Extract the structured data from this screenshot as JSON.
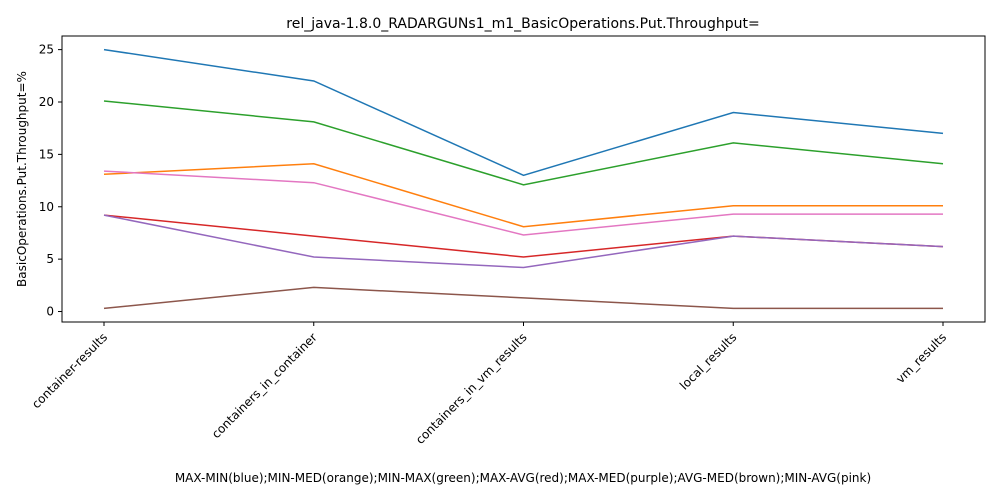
{
  "chart_data": {
    "type": "line",
    "title": "rel_java-1.8.0_RADARGUNs1_m1_BasicOperations.Put.Throughput=",
    "xlabel": "MAX-MIN(blue);MIN-MED(orange);MIN-MAX(green);MAX-AVG(red);MAX-MED(purple);AVG-MED(brown);MIN-AVG(pink)",
    "ylabel": "BasicOperations.Put.Throughput=%",
    "categories": [
      "container-results",
      "containers_in_container",
      "containers_in_vm_results",
      "local_results",
      "vm_results"
    ],
    "ylim": [
      -1,
      26.3
    ],
    "yticks": [
      0,
      5,
      10,
      15,
      20,
      25
    ],
    "grid": false,
    "series": [
      {
        "color": "#1f77b4",
        "values": [
          25,
          22,
          13,
          19,
          17
        ]
      },
      {
        "color": "#ff7f0e",
        "values": [
          13.1,
          14.1,
          8.1,
          10.1,
          10.1
        ]
      },
      {
        "color": "#2ca02c",
        "values": [
          20.1,
          18.1,
          12.1,
          16.1,
          14.1
        ]
      },
      {
        "color": "#d62728",
        "values": [
          9.2,
          7.2,
          5.2,
          7.2,
          6.2
        ]
      },
      {
        "color": "#9467bd",
        "values": [
          9.2,
          5.2,
          4.2,
          7.2,
          6.2
        ]
      },
      {
        "color": "#8c564b",
        "values": [
          0.3,
          2.3,
          1.3,
          0.3,
          0.3
        ]
      },
      {
        "color": "#e377c2",
        "values": [
          13.4,
          12.3,
          7.3,
          9.3,
          9.3
        ]
      }
    ]
  }
}
